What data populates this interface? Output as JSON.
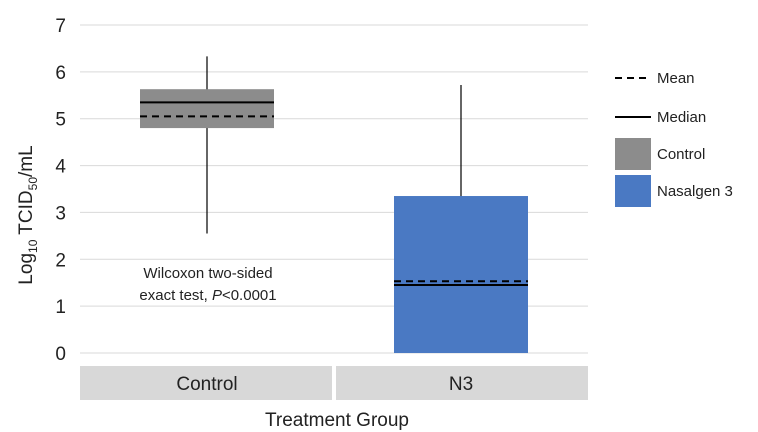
{
  "chart_data": {
    "type": "box",
    "xlabel": "Treatment Group",
    "ylabel": {
      "prefix": "Log",
      "prefix_sub": "10",
      "main": " TCID",
      "main_sub": "50",
      "suffix": "/mL"
    },
    "ylim": [
      0,
      7
    ],
    "yticks": [
      "0",
      "1",
      "2",
      "3",
      "4",
      "5",
      "6",
      "7"
    ],
    "grid": true,
    "legend_position": "right",
    "categories": [
      "Control",
      "N3"
    ],
    "boxes": [
      {
        "category": "Control",
        "legend_name": "Control",
        "color": "#8c8c8c",
        "whisker_low": 2.55,
        "q1": 4.8,
        "median": 5.35,
        "mean": 5.05,
        "q3": 5.63,
        "whisker_high": 6.33
      },
      {
        "category": "N3",
        "legend_name": "Nasalgen 3",
        "color": "#4a79c3",
        "whisker_low": 0,
        "q1": 0,
        "median": 1.45,
        "mean": 1.53,
        "q3": 3.35,
        "whisker_high": 5.72
      }
    ],
    "legend": [
      {
        "label": "Mean",
        "kind": "dashed-line"
      },
      {
        "label": "Median",
        "kind": "solid-line"
      },
      {
        "label": "Control",
        "kind": "swatch",
        "color": "#8c8c8c"
      },
      {
        "label": "Nasalgen 3",
        "kind": "swatch",
        "color": "#4a79c3"
      }
    ],
    "annotation": {
      "line1": "Wilcoxon two-sided",
      "line2_prefix": "exact test, ",
      "line2_italic": "P",
      "line2_suffix": "<0.0001"
    },
    "colors": {
      "category_band": "#d8d8d8",
      "grid": "#d9d9d9",
      "line": "#000000"
    }
  }
}
